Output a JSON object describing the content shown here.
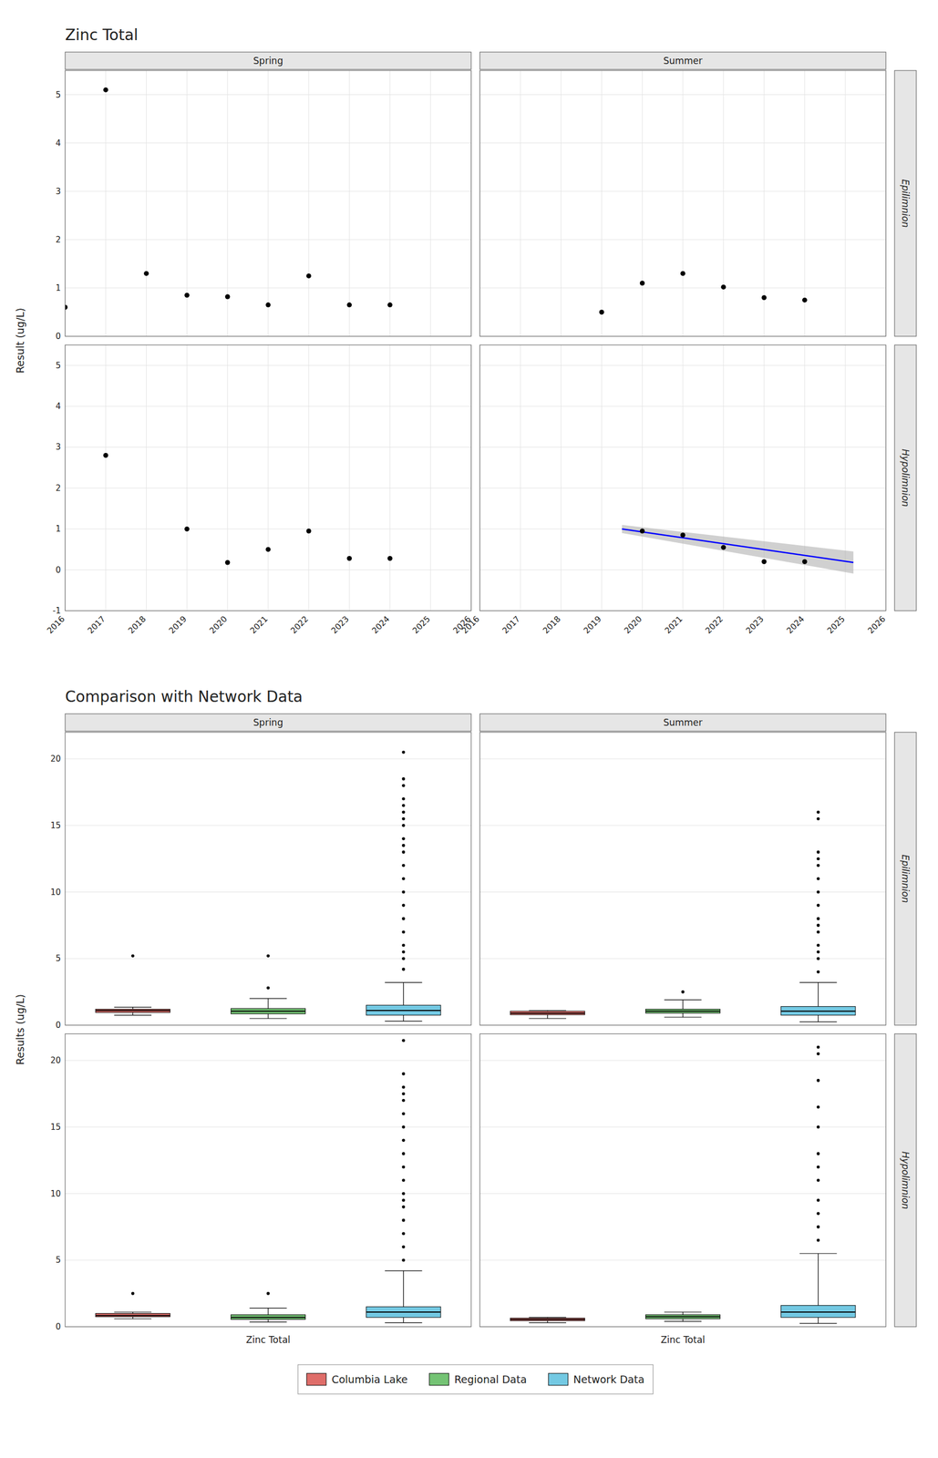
{
  "chart_data": [
    {
      "type": "scatter",
      "title": "Zinc Total",
      "ylabel": "Result (ug/L)",
      "column_labels": [
        "Spring",
        "Summer"
      ],
      "row_labels": [
        "Epilimnion",
        "Hypolimnion"
      ],
      "xlim": [
        2016,
        2026
      ],
      "xticks": [
        2016,
        2017,
        2018,
        2019,
        2020,
        2021,
        2022,
        2023,
        2024,
        2025,
        2026
      ],
      "grid": true,
      "panels": [
        {
          "ylim": [
            0,
            5.5
          ],
          "yticks": [
            0,
            1,
            2,
            3,
            4,
            5
          ],
          "color": "#000000",
          "x": [
            2016,
            2017,
            2018,
            2019,
            2020,
            2021,
            2022,
            2023,
            2024
          ],
          "values": [
            0.6,
            5.1,
            1.3,
            0.85,
            0.82,
            0.65,
            1.25,
            0.65,
            0.65
          ]
        },
        {
          "ylim": [
            0,
            5.5
          ],
          "yticks": [
            0,
            1,
            2,
            3,
            4,
            5
          ],
          "color": "#000000",
          "x": [
            2019,
            2020,
            2021,
            2022,
            2023,
            2024
          ],
          "values": [
            0.5,
            1.1,
            1.3,
            1.02,
            0.8,
            0.75
          ]
        },
        {
          "ylim": [
            -1,
            5.5
          ],
          "yticks": [
            -1,
            0,
            1,
            2,
            3,
            4,
            5
          ],
          "color": "#000000",
          "x": [
            2017,
            2019,
            2020,
            2021,
            2022,
            2023,
            2024
          ],
          "values": [
            2.8,
            1.0,
            0.18,
            0.5,
            0.95,
            0.28,
            0.28
          ]
        },
        {
          "ylim": [
            -1,
            5.5
          ],
          "yticks": [
            -1,
            0,
            1,
            2,
            3,
            4,
            5
          ],
          "color": "#000000",
          "x": [
            2020,
            2021,
            2022,
            2023,
            2024
          ],
          "values": [
            0.95,
            0.85,
            0.55,
            0.2,
            0.2
          ],
          "trend": {
            "x": [
              2019.5,
              2025.2
            ],
            "values": [
              1.0,
              0.18
            ],
            "upper": [
              1.1,
              0.45
            ],
            "lower": [
              0.9,
              -0.09
            ],
            "color": "#0000ff"
          }
        }
      ]
    },
    {
      "type": "box",
      "title": "Comparison with Network Data",
      "ylabel": "Results (ug/L)",
      "xlabel": "Zinc Total",
      "column_labels": [
        "Spring",
        "Summer"
      ],
      "row_labels": [
        "Epilimnion",
        "Hypolimnion"
      ],
      "ylim": [
        0,
        22
      ],
      "yticks": [
        0,
        5,
        10,
        15,
        20
      ],
      "grid": true,
      "tick_labels": "y",
      "legend": "bottom",
      "series": [
        {
          "name": "Columbia Lake",
          "color": "#d9534f"
        },
        {
          "name": "Regional Data",
          "color": "#5cb85c"
        },
        {
          "name": "Network Data",
          "color": "#5bc0de"
        }
      ],
      "panels": [
        {
          "boxes": [
            {
              "med": 1.1,
              "q1": 0.95,
              "q3": 1.2,
              "whislo": 0.75,
              "whishi": 1.35,
              "fliers": [
                5.2
              ]
            },
            {
              "med": 1.05,
              "q1": 0.85,
              "q3": 1.25,
              "whislo": 0.5,
              "whishi": 2.0,
              "fliers": [
                2.8,
                5.2
              ]
            },
            {
              "med": 1.1,
              "q1": 0.75,
              "q3": 1.5,
              "whislo": 0.3,
              "whishi": 3.2,
              "fliers": [
                4.2,
                5.0,
                5.5,
                6.0,
                7.0,
                8.0,
                9.0,
                10.0,
                11.0,
                12.0,
                13.0,
                13.5,
                14.0,
                15.0,
                15.5,
                16.0,
                16.5,
                17.0,
                18.0,
                18.5,
                20.5
              ]
            }
          ]
        },
        {
          "boxes": [
            {
              "med": 0.9,
              "q1": 0.78,
              "q3": 1.05,
              "whislo": 0.5,
              "whishi": 1.1,
              "fliers": []
            },
            {
              "med": 1.05,
              "q1": 0.9,
              "q3": 1.2,
              "whislo": 0.6,
              "whishi": 1.9,
              "fliers": [
                2.5
              ]
            },
            {
              "med": 1.05,
              "q1": 0.75,
              "q3": 1.4,
              "whislo": 0.25,
              "whishi": 3.2,
              "fliers": [
                4.0,
                5.0,
                5.5,
                6.0,
                7.0,
                7.5,
                8.0,
                9.0,
                10.0,
                11.0,
                12.0,
                12.5,
                13.0,
                15.5,
                16.0
              ]
            }
          ]
        },
        {
          "boxes": [
            {
              "med": 0.85,
              "q1": 0.75,
              "q3": 1.0,
              "whislo": 0.6,
              "whishi": 1.1,
              "fliers": [
                2.5
              ]
            },
            {
              "med": 0.7,
              "q1": 0.55,
              "q3": 0.9,
              "whislo": 0.35,
              "whishi": 1.4,
              "fliers": [
                2.5
              ]
            },
            {
              "med": 1.1,
              "q1": 0.7,
              "q3": 1.5,
              "whislo": 0.3,
              "whishi": 4.2,
              "fliers": [
                5.0,
                6.0,
                7.0,
                8.0,
                9.0,
                9.5,
                10.0,
                11.0,
                12.0,
                13.0,
                14.0,
                15.0,
                16.0,
                17.0,
                17.5,
                18.0,
                19.0,
                21.5
              ]
            }
          ]
        },
        {
          "boxes": [
            {
              "med": 0.55,
              "q1": 0.45,
              "q3": 0.65,
              "whislo": 0.3,
              "whishi": 0.7,
              "fliers": []
            },
            {
              "med": 0.75,
              "q1": 0.6,
              "q3": 0.9,
              "whislo": 0.4,
              "whishi": 1.1,
              "fliers": []
            },
            {
              "med": 1.1,
              "q1": 0.7,
              "q3": 1.6,
              "whislo": 0.25,
              "whishi": 5.5,
              "fliers": [
                6.5,
                7.5,
                8.5,
                9.5,
                11.0,
                12.0,
                13.0,
                15.0,
                16.5,
                18.5,
                20.5,
                21.0
              ]
            }
          ]
        }
      ]
    }
  ]
}
